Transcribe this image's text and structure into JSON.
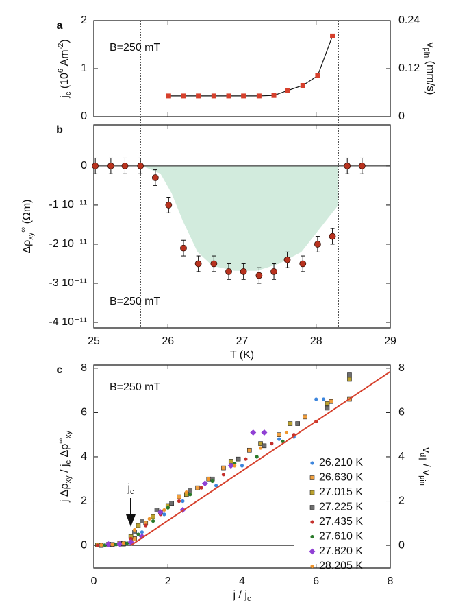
{
  "chart_data": [
    {
      "type": "line",
      "label": "a",
      "annotation": "B=250 mT",
      "ylabel": [
        {
          "t": "j"
        },
        {
          "t": "c",
          "s": "sub"
        },
        {
          "t": " (10"
        },
        {
          "t": "6",
          "s": "sup"
        },
        {
          "t": " Am"
        },
        {
          "t": "-2",
          "s": "sup"
        },
        {
          "t": ")"
        }
      ],
      "y2label": [
        {
          "t": "v"
        },
        {
          "t": "pin",
          "s": "sub"
        },
        {
          "t": " (mm/s)"
        }
      ],
      "xlim": [
        25,
        29
      ],
      "ylim": [
        0,
        2
      ],
      "yticks": [
        0,
        1,
        2
      ],
      "y2lim": [
        0,
        0.24
      ],
      "y2ticks": [
        0,
        0.12,
        0.24
      ],
      "x": [
        26.01,
        26.21,
        26.41,
        26.62,
        26.82,
        27.02,
        27.23,
        27.43,
        27.61,
        27.82,
        28.02,
        28.22
      ],
      "values": [
        0.43,
        0.43,
        0.43,
        0.43,
        0.43,
        0.43,
        0.43,
        0.44,
        0.54,
        0.65,
        0.85,
        1.68
      ],
      "color": "#d6402c"
    },
    {
      "type": "errorbar",
      "label": "b",
      "annotation": "B=250 mT",
      "ylabel": [
        {
          "t": "Δρ"
        },
        {
          "t": "xy",
          "s": "sub"
        },
        {
          "t": "∞",
          "s": "sup"
        },
        {
          "t": " (Ωm)"
        }
      ],
      "xlabel": [
        {
          "t": "T (K)"
        }
      ],
      "xlim": [
        25,
        29
      ],
      "xticks": [
        25,
        26,
        27,
        28,
        29
      ],
      "ylim": [
        -4.14e-11,
        1.05e-11
      ],
      "yticks": [
        0,
        {
          "value": -1e-11,
          "label": "-1 10⁻¹¹"
        },
        {
          "value": -2e-11,
          "label": "-2 10⁻¹¹"
        },
        {
          "value": -3e-11,
          "label": "-3 10⁻¹¹"
        },
        {
          "value": -4e-11,
          "label": "-4 10⁻¹¹"
        }
      ],
      "x": [
        25.02,
        25.23,
        25.42,
        25.63,
        25.83,
        26.01,
        26.21,
        26.41,
        26.62,
        26.82,
        27.02,
        27.23,
        27.43,
        27.61,
        27.82,
        28.02,
        28.22,
        28.42,
        28.62
      ],
      "values": [
        0,
        0,
        0,
        0,
        -3e-12,
        -1e-11,
        -2.1e-11,
        -2.5e-11,
        -2.5e-11,
        -2.7e-11,
        -2.7e-11,
        -2.8e-11,
        -2.7e-11,
        -2.4e-11,
        -2.5e-11,
        -2e-11,
        -1.8e-11,
        0,
        0
      ],
      "errors": [
        2e-12,
        2e-12,
        2e-12,
        2e-12,
        2e-12,
        2e-12,
        2e-12,
        2e-12,
        2e-12,
        2e-12,
        2e-12,
        2e-12,
        2e-12,
        2e-12,
        2e-12,
        2e-12,
        2e-12,
        2e-12,
        2e-12
      ],
      "color": "#b8321e",
      "shade": {
        "x": [
          25.65,
          25.9,
          26.05,
          26.2,
          26.4,
          26.6,
          26.9,
          27.2,
          27.5,
          27.8,
          28.05,
          28.3,
          28.3
        ],
        "values": [
          0,
          -2e-12,
          -7e-12,
          -1.4e-11,
          -2.2e-11,
          -2.55e-11,
          -2.68e-11,
          -2.68e-11,
          -2.5e-11,
          -2.2e-11,
          -1.6e-11,
          -1e-11,
          0
        ],
        "color": "#d2ebdd"
      },
      "vlines": [
        25.63,
        28.3
      ]
    },
    {
      "type": "scatter",
      "label": "c",
      "annotation": "B=250 mT",
      "annotation2": [
        {
          "t": "j"
        },
        {
          "t": "c",
          "s": "sub"
        }
      ],
      "ylabel": [
        {
          "t": "j Δρ"
        },
        {
          "t": "xy",
          "s": "sub"
        },
        {
          "t": " / j"
        },
        {
          "t": "c",
          "s": "sub"
        },
        {
          "t": " Δρ"
        },
        {
          "t": "∞",
          "s": "sup"
        },
        {
          "t": "xy",
          "s": "sub"
        }
      ],
      "y2label": [
        {
          "t": "v"
        },
        {
          "t": "d∥",
          "s": "sub"
        },
        {
          "t": " / v"
        },
        {
          "t": "pin",
          "s": "sub"
        }
      ],
      "xlabel": [
        {
          "t": "j / j"
        },
        {
          "t": "c",
          "s": "sub"
        }
      ],
      "xlim": [
        0,
        8
      ],
      "xticks": [
        0,
        2,
        4,
        6,
        8
      ],
      "ylim": [
        -1.02,
        8.15
      ],
      "yticks": [
        0,
        2,
        4,
        6,
        8
      ],
      "y2lim": [
        -1.02,
        8.15
      ],
      "y2ticks": [
        0,
        2,
        4,
        6,
        8
      ],
      "fit": {
        "x": [
          1,
          8
        ],
        "values": [
          0,
          7.85
        ],
        "color": "#d6402c"
      },
      "baseline": {
        "x": [
          0,
          5.4
        ],
        "values": [
          0,
          0
        ]
      },
      "series": [
        {
          "name": "26.210 K",
          "color": "#3d86dd",
          "marker": "circle",
          "x": [
            0.1,
            0.4,
            0.7,
            1.0,
            1.3,
            1.9,
            2.4,
            3.3,
            4.0,
            5.0,
            5.4,
            6.0,
            6.2
          ],
          "values": [
            0,
            0.02,
            0.05,
            0.1,
            0.6,
            1.4,
            2.0,
            2.7,
            3.6,
            4.8,
            4.9,
            6.6,
            6.6
          ]
        },
        {
          "name": "26.630 K",
          "color": "#f0a040",
          "marker": "square",
          "x": [
            0.2,
            0.5,
            0.8,
            1.1,
            1.4,
            1.8,
            2.3,
            2.8,
            3.5,
            4.2,
            5.0,
            5.7,
            6.4,
            6.9
          ],
          "values": [
            0,
            0.03,
            0.06,
            0.3,
            1.0,
            1.5,
            2.2,
            2.6,
            3.5,
            4.3,
            5.0,
            5.8,
            6.5,
            6.6
          ]
        },
        {
          "name": "27.015 K",
          "color": "#bba22e",
          "marker": "square",
          "x": [
            0.1,
            0.4,
            0.7,
            1.0,
            1.2,
            1.6,
            2.0,
            2.5,
            3.1,
            3.7,
            4.5,
            5.3,
            6.3,
            6.9
          ],
          "values": [
            0.02,
            0.05,
            0.1,
            0.4,
            0.9,
            1.3,
            1.8,
            2.3,
            3.0,
            3.8,
            4.6,
            5.5,
            6.4,
            7.5
          ]
        },
        {
          "name": "27.225 K",
          "color": "#6e6e6e",
          "marker": "square",
          "x": [
            0.2,
            0.5,
            0.8,
            1.1,
            1.3,
            1.7,
            2.1,
            2.6,
            3.2,
            3.9,
            4.6,
            5.5,
            6.3,
            6.9
          ],
          "values": [
            0,
            0.04,
            0.08,
            0.6,
            1.1,
            1.6,
            1.9,
            2.5,
            3.0,
            3.9,
            4.5,
            5.5,
            6.2,
            7.7
          ]
        },
        {
          "name": "27.435 K",
          "color": "#c4302c",
          "marker": "circle",
          "x": [
            0.1,
            0.4,
            0.7,
            1.0,
            1.4,
            1.8,
            2.3,
            2.9,
            3.5,
            4.1,
            4.8,
            5.4,
            6.0
          ],
          "values": [
            0,
            0.02,
            0.05,
            0.3,
            0.9,
            1.4,
            2.0,
            2.6,
            3.2,
            3.9,
            4.6,
            5.0,
            5.6
          ]
        },
        {
          "name": "27.610 K",
          "color": "#2a7a2a",
          "marker": "circle",
          "x": [
            0.3,
            0.6,
            0.9,
            1.2,
            1.6,
            2.0,
            2.6,
            3.2,
            3.8,
            4.4,
            5.1
          ],
          "values": [
            0.01,
            0.04,
            0.1,
            0.5,
            1.1,
            1.7,
            2.3,
            2.9,
            3.7,
            4.0,
            4.7
          ]
        },
        {
          "name": "27.820 K",
          "color": "#9040d4",
          "marker": "diamond",
          "x": [
            0.4,
            0.7,
            1.0,
            1.3,
            1.8,
            2.4,
            3.0,
            3.7,
            4.3,
            4.6
          ],
          "values": [
            0.05,
            0.06,
            0.15,
            0.4,
            1.5,
            1.6,
            2.8,
            3.6,
            5.1,
            5.1
          ]
        },
        {
          "name": "28.205 K",
          "color": "#f0962e",
          "marker": "circle",
          "x": [
            0.2,
            0.5,
            0.8,
            1.1,
            1.5,
            1.9,
            2.5,
            3.1,
            3.8,
            4.5,
            5.2
          ],
          "values": [
            0.02,
            0.04,
            0.1,
            0.7,
            1.2,
            1.6,
            2.4,
            3.0,
            3.6,
            4.4,
            5.1
          ]
        }
      ]
    }
  ]
}
